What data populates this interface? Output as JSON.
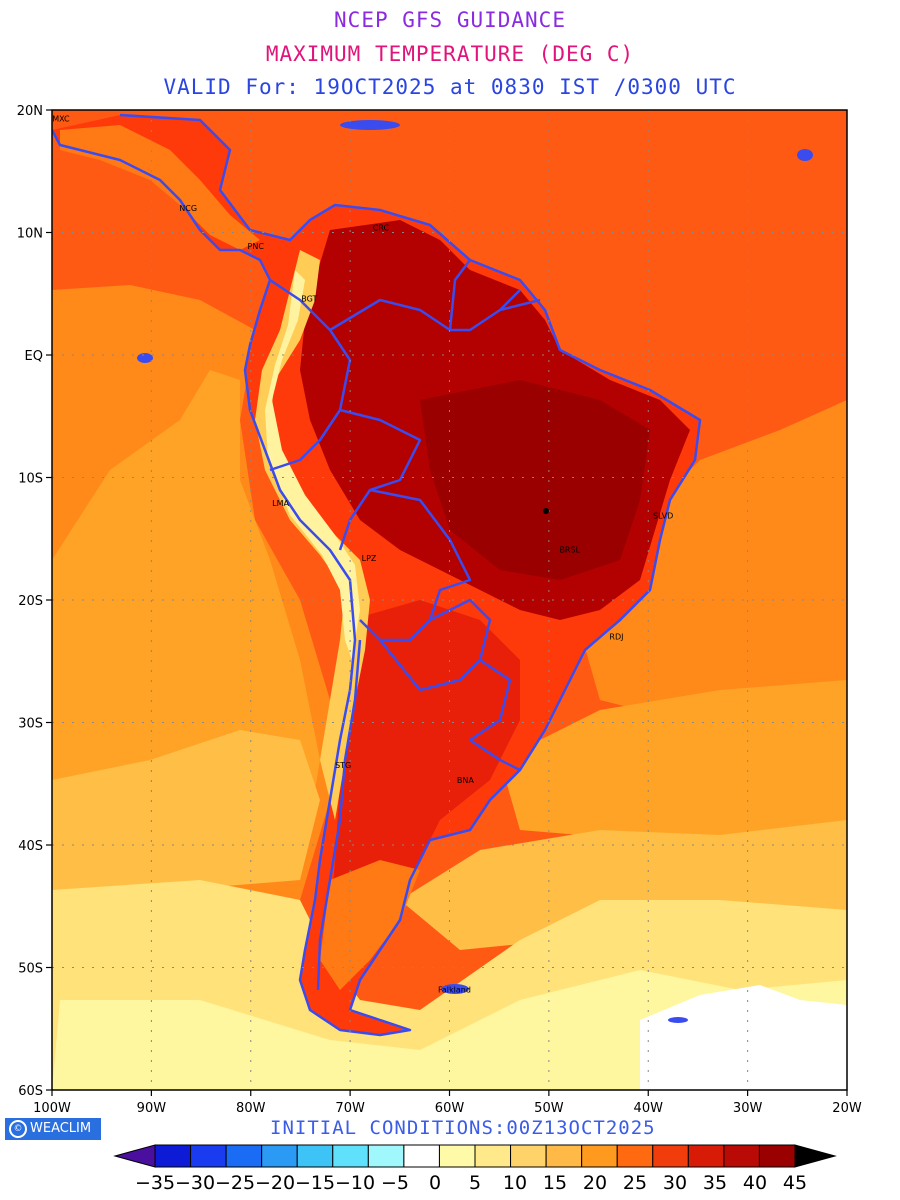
{
  "header": {
    "title": "NCEP GFS GUIDANCE",
    "subtitle": "MAXIMUM TEMPERATURE (DEG C)",
    "valid": "VALID For: 19OCT2025 at 0830 IST /0300 UTC"
  },
  "footer": {
    "brand": "WEACLIM",
    "brand_symbol": "©",
    "init": "INITIAL CONDITIONS:00Z13OCT2025"
  },
  "axes": {
    "lat_ticks": [
      "20N",
      "10N",
      "EQ",
      "10S",
      "20S",
      "30S",
      "40S",
      "50S",
      "60S"
    ],
    "lon_ticks": [
      "100W",
      "90W",
      "80W",
      "70W",
      "60W",
      "50W",
      "40W",
      "30W",
      "20W"
    ],
    "lon_range": [
      -100,
      -20
    ],
    "lat_range": [
      -60,
      20
    ],
    "grid": true
  },
  "colorbar": {
    "labels": [
      "-35",
      "-30",
      "-25",
      "-20",
      "-15",
      "-10",
      "-5",
      "0",
      "5",
      "10",
      "15",
      "20",
      "25",
      "30",
      "35",
      "40",
      "45"
    ],
    "colors": [
      "#4b0fa0",
      "#0d1bd6",
      "#1a3cf0",
      "#1a6cf5",
      "#2a9af5",
      "#3ec3f7",
      "#5fe0fb",
      "#a0f8fd",
      "#ffffff",
      "#fffaa8",
      "#ffe98a",
      "#ffd36a",
      "#ffb947",
      "#ff9a1f",
      "#ff6a10",
      "#f13c0c",
      "#d81b06",
      "#b90a05",
      "#9a0000",
      "#000000"
    ]
  },
  "palette": {
    "land_hot": "#a80000",
    "border": "#3a4cf0"
  },
  "cities": [
    {
      "label": "MXC",
      "lon": -99.1,
      "lat": 19.4
    },
    {
      "label": "NCG",
      "lon": -86.3,
      "lat": 12.1
    },
    {
      "label": "PNC",
      "lon": -79.5,
      "lat": 9.0
    },
    {
      "label": "CRC",
      "lon": -66.9,
      "lat": 10.5
    },
    {
      "label": "BGT",
      "lon": -74.1,
      "lat": 4.7
    },
    {
      "label": "LMA",
      "lon": -77.0,
      "lat": -12.0
    },
    {
      "label": "LPZ",
      "lon": -68.1,
      "lat": -16.5
    },
    {
      "label": "SLVD",
      "lon": -38.5,
      "lat": -13.0
    },
    {
      "label": "BRSL",
      "lon": -47.9,
      "lat": -15.8
    },
    {
      "label": "RDJ",
      "lon": -43.2,
      "lat": -22.9
    },
    {
      "label": "STG",
      "lon": -70.7,
      "lat": -33.4
    },
    {
      "label": "BNA",
      "lon": -58.4,
      "lat": -34.6
    },
    {
      "label": "Falkland",
      "lon": -59.5,
      "lat": -51.7
    }
  ]
}
